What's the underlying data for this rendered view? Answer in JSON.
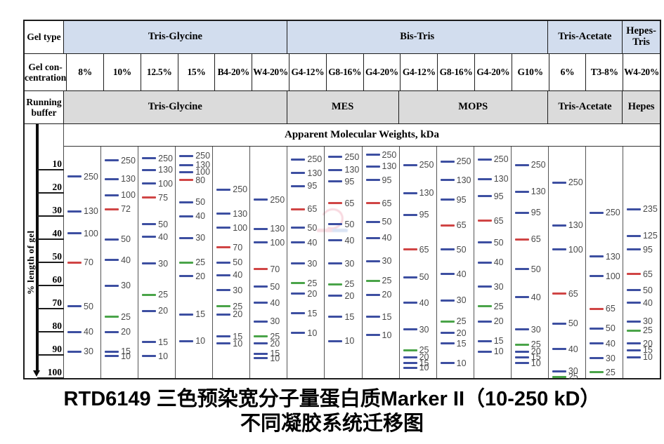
{
  "header": {
    "row1_label": "Gel type",
    "row2_label": "Gel con-\ncentration",
    "row3_label": "Running\nbuffer",
    "gel_types": [
      {
        "label": "Tris-Glycine",
        "span": 6
      },
      {
        "label": "Bis-Tris",
        "span": 7
      },
      {
        "label": "Tris-Acetate",
        "span": 2
      },
      {
        "label": "Hepes-\nTris",
        "span": 1
      }
    ],
    "concentrations": [
      "8%",
      "10%",
      "12.5%",
      "15%",
      "B4-20%",
      "W4-20%",
      "G4-12%",
      "G8-16%",
      "G4-20%",
      "G4-12%",
      "G8-16%",
      "G4-20%",
      "G10%",
      "6%",
      "T3-8%",
      "W4-20%"
    ],
    "running_buffers": [
      {
        "label": "Tris-Glycine",
        "span": 6
      },
      {
        "label": "MES",
        "span": 3
      },
      {
        "label": "MOPS",
        "span": 4
      },
      {
        "label": "Tris-Acetate",
        "span": 2
      },
      {
        "label": "Hepes",
        "span": 1
      }
    ]
  },
  "amw_title": "Apparent Molecular Weights, kDa",
  "axis": {
    "label": "% length of gel",
    "ticks": [
      "10",
      "20",
      "30",
      "40",
      "50",
      "60",
      "70",
      "80",
      "90",
      "100"
    ]
  },
  "colors": {
    "band_blue": "#3d4fa1",
    "band_red": "#d04545",
    "band_green": "#4aa449",
    "band_label": "#4a4a4a",
    "gel_type_bg": "#d2ddee",
    "buffer_bg": "#dbdbdb"
  },
  "title_line1": "RTD6149 三色预染宽分子量蛋白质Marker II（10-250 kD）",
  "title_line2": "不同凝胶系统迁移图",
  "chart_data": {
    "type": "scatter",
    "title": "RTD6149 三色预染宽分子量蛋白质Marker II（10-250 kD）不同凝胶系统迁移图",
    "ylabel": "% length of gel",
    "ylim": [
      0,
      100
    ],
    "y_direction": "downward",
    "band_format": [
      "kDa",
      "percent_length_of_gel",
      "color b=blue r=red g=green"
    ],
    "lanes": [
      {
        "gel_type": "Tris-Glycine",
        "running_buffer": "Tris-Glycine",
        "concentration": "8%",
        "bands": [
          [
            250,
            13,
            "b"
          ],
          [
            130,
            28,
            "b"
          ],
          [
            100,
            37.5,
            "b"
          ],
          [
            70,
            50,
            "r"
          ],
          [
            50,
            69,
            "b"
          ],
          [
            40,
            80,
            "b"
          ],
          [
            30,
            88.5,
            "b"
          ]
        ]
      },
      {
        "gel_type": "Tris-Glycine",
        "running_buffer": "Tris-Glycine",
        "concentration": "10%",
        "bands": [
          [
            250,
            6,
            "b"
          ],
          [
            130,
            14,
            "b"
          ],
          [
            100,
            21,
            "b"
          ],
          [
            72,
            27,
            "r"
          ],
          [
            50,
            40,
            "b"
          ],
          [
            40,
            49,
            "b"
          ],
          [
            30,
            60,
            "b"
          ],
          [
            25,
            73.5,
            "g"
          ],
          [
            20,
            80,
            "b"
          ],
          [
            15,
            88.5,
            "b"
          ],
          [
            10,
            90.5,
            "b"
          ]
        ]
      },
      {
        "gel_type": "Tris-Glycine",
        "running_buffer": "Tris-Glycine",
        "concentration": "12.5%",
        "bands": [
          [
            250,
            5,
            "b"
          ],
          [
            130,
            10,
            "b"
          ],
          [
            100,
            16,
            "b"
          ],
          [
            75,
            22,
            "r"
          ],
          [
            50,
            33.5,
            "b"
          ],
          [
            40,
            39,
            "b"
          ],
          [
            30,
            50.5,
            "b"
          ],
          [
            25,
            64,
            "g"
          ],
          [
            20,
            71,
            "b"
          ],
          [
            15,
            84.5,
            "b"
          ],
          [
            10,
            90.5,
            "b"
          ]
        ]
      },
      {
        "gel_type": "Tris-Glycine",
        "running_buffer": "Tris-Glycine",
        "concentration": "15%",
        "bands": [
          [
            250,
            4,
            "b"
          ],
          [
            130,
            8,
            "b"
          ],
          [
            100,
            11,
            "b"
          ],
          [
            80,
            14.5,
            "r"
          ],
          [
            50,
            24,
            "b"
          ],
          [
            40,
            30,
            "b"
          ],
          [
            30,
            39.5,
            "b"
          ],
          [
            25,
            50,
            "g"
          ],
          [
            20,
            56,
            "b"
          ],
          [
            15,
            72.5,
            "b"
          ],
          [
            10,
            84,
            "b"
          ]
        ]
      },
      {
        "gel_type": "Tris-Glycine",
        "running_buffer": "Tris-Glycine",
        "concentration": "B4-20%",
        "bands": [
          [
            250,
            18.5,
            "b"
          ],
          [
            130,
            29,
            "b"
          ],
          [
            100,
            35,
            "b"
          ],
          [
            70,
            43.5,
            "r"
          ],
          [
            50,
            50,
            "b"
          ],
          [
            40,
            55.5,
            "b"
          ],
          [
            30,
            62,
            "b"
          ],
          [
            25,
            69,
            "g"
          ],
          [
            20,
            72.5,
            "b"
          ],
          [
            15,
            82,
            "b"
          ],
          [
            10,
            85,
            "b"
          ]
        ]
      },
      {
        "gel_type": "Tris-Glycine",
        "running_buffer": "Tris-Glycine",
        "concentration": "W4-20%",
        "bands": [
          [
            250,
            23,
            "b"
          ],
          [
            130,
            35.5,
            "b"
          ],
          [
            100,
            41.5,
            "b"
          ],
          [
            70,
            53,
            "r"
          ],
          [
            50,
            60.5,
            "b"
          ],
          [
            40,
            67.5,
            "b"
          ],
          [
            30,
            75.5,
            "b"
          ],
          [
            25,
            82,
            "g"
          ],
          [
            20,
            85,
            "b"
          ],
          [
            15,
            89.5,
            "b"
          ],
          [
            10,
            91.5,
            "b"
          ]
        ]
      },
      {
        "gel_type": "Bis-Tris",
        "running_buffer": "MES",
        "concentration": "G4-12%",
        "bands": [
          [
            250,
            5.5,
            "b"
          ],
          [
            130,
            11.5,
            "b"
          ],
          [
            95,
            17,
            "b"
          ],
          [
            65,
            27,
            "r"
          ],
          [
            50,
            35,
            "b"
          ],
          [
            40,
            41.5,
            "b"
          ],
          [
            30,
            50.5,
            "b"
          ],
          [
            25,
            59,
            "g"
          ],
          [
            20,
            63.5,
            "b"
          ],
          [
            15,
            72,
            "b"
          ],
          [
            10,
            80.5,
            "b"
          ]
        ]
      },
      {
        "gel_type": "Bis-Tris",
        "running_buffer": "MES",
        "concentration": "G8-16%",
        "bands": [
          [
            250,
            4.5,
            "b"
          ],
          [
            130,
            10,
            "b"
          ],
          [
            95,
            15,
            "b"
          ],
          [
            65,
            24.5,
            "r"
          ],
          [
            50,
            33.5,
            "b"
          ],
          [
            40,
            40.5,
            "b"
          ],
          [
            30,
            50.5,
            "b"
          ],
          [
            25,
            59.5,
            "g"
          ],
          [
            20,
            64.5,
            "b"
          ],
          [
            15,
            73.5,
            "b"
          ],
          [
            10,
            84,
            "b"
          ]
        ]
      },
      {
        "gel_type": "Bis-Tris",
        "running_buffer": "MES",
        "concentration": "G4-20%",
        "bands": [
          [
            250,
            3.5,
            "b"
          ],
          [
            130,
            8.5,
            "b"
          ],
          [
            95,
            14.5,
            "b"
          ],
          [
            65,
            24.5,
            "r"
          ],
          [
            50,
            32.5,
            "b"
          ],
          [
            40,
            39.5,
            "b"
          ],
          [
            30,
            49.5,
            "b"
          ],
          [
            25,
            58,
            "g"
          ],
          [
            20,
            64,
            "b"
          ],
          [
            15,
            73.5,
            "b"
          ],
          [
            10,
            81.5,
            "b"
          ]
        ]
      },
      {
        "gel_type": "Bis-Tris",
        "running_buffer": "MOPS",
        "concentration": "G4-12%",
        "bands": [
          [
            250,
            8,
            "b"
          ],
          [
            130,
            20,
            "b"
          ],
          [
            95,
            29.5,
            "b"
          ],
          [
            65,
            44.5,
            "r"
          ],
          [
            50,
            56.5,
            "b"
          ],
          [
            40,
            67.5,
            "b"
          ],
          [
            30,
            79,
            "b"
          ],
          [
            25,
            88,
            "g"
          ],
          [
            20,
            91,
            "b"
          ],
          [
            15,
            93.5,
            "b"
          ],
          [
            10,
            95.5,
            "b"
          ]
        ]
      },
      {
        "gel_type": "Bis-Tris",
        "running_buffer": "MOPS",
        "concentration": "G8-16%",
        "bands": [
          [
            250,
            6.5,
            "b"
          ],
          [
            130,
            14.5,
            "b"
          ],
          [
            95,
            23,
            "b"
          ],
          [
            65,
            34,
            "r"
          ],
          [
            50,
            44.5,
            "b"
          ],
          [
            40,
            55,
            "b"
          ],
          [
            30,
            66.5,
            "b"
          ],
          [
            25,
            75.5,
            "g"
          ],
          [
            20,
            80.5,
            "b"
          ],
          [
            15,
            85,
            "b"
          ],
          [
            10,
            93.5,
            "b"
          ]
        ]
      },
      {
        "gel_type": "Bis-Tris",
        "running_buffer": "MOPS",
        "concentration": "G4-20%",
        "bands": [
          [
            250,
            5.5,
            "b"
          ],
          [
            130,
            14,
            "b"
          ],
          [
            95,
            21.5,
            "b"
          ],
          [
            65,
            32,
            "r"
          ],
          [
            50,
            41.5,
            "b"
          ],
          [
            40,
            50,
            "b"
          ],
          [
            30,
            60.5,
            "b"
          ],
          [
            25,
            69,
            "g"
          ],
          [
            20,
            75.5,
            "b"
          ],
          [
            15,
            84,
            "b"
          ],
          [
            10,
            88.5,
            "b"
          ]
        ]
      },
      {
        "gel_type": "Bis-Tris",
        "running_buffer": "MOPS",
        "concentration": "G10%",
        "bands": [
          [
            250,
            8,
            "b"
          ],
          [
            130,
            19.5,
            "b"
          ],
          [
            95,
            28.5,
            "b"
          ],
          [
            65,
            40,
            "r"
          ],
          [
            50,
            53,
            "b"
          ],
          [
            40,
            65,
            "b"
          ],
          [
            30,
            79,
            "b"
          ],
          [
            25,
            85.5,
            "g"
          ],
          [
            20,
            88.5,
            "b"
          ],
          [
            15,
            91,
            "b"
          ],
          [
            10,
            93.5,
            "b"
          ]
        ]
      },
      {
        "gel_type": "Tris-Acetate",
        "running_buffer": "Tris-Acetate",
        "concentration": "6%",
        "bands": [
          [
            250,
            15.5,
            "b"
          ],
          [
            130,
            34,
            "b"
          ],
          [
            100,
            44.5,
            "b"
          ],
          [
            65,
            63.5,
            "r"
          ],
          [
            50,
            76.5,
            "b"
          ],
          [
            40,
            87.5,
            "b"
          ],
          [
            30,
            97,
            "b"
          ],
          [
            25,
            99.5,
            "g"
          ]
        ]
      },
      {
        "gel_type": "Tris-Acetate",
        "running_buffer": "Tris-Acetate",
        "concentration": "T3-8%",
        "bands": [
          [
            250,
            28.5,
            "b"
          ],
          [
            130,
            47.5,
            "b"
          ],
          [
            100,
            56,
            "b"
          ],
          [
            65,
            70,
            "r"
          ],
          [
            50,
            78.5,
            "b"
          ],
          [
            40,
            85,
            "b"
          ],
          [
            30,
            91.5,
            "b"
          ],
          [
            25,
            97.5,
            "g"
          ]
        ]
      },
      {
        "gel_type": "Hepes-Tris",
        "running_buffer": "Hepes",
        "concentration": "W4-20%",
        "bands": [
          [
            235,
            27,
            "b"
          ],
          [
            125,
            38.5,
            "b"
          ],
          [
            95,
            44.5,
            "b"
          ],
          [
            65,
            55,
            "r"
          ],
          [
            50,
            62,
            "b"
          ],
          [
            40,
            67.5,
            "b"
          ],
          [
            30,
            75.5,
            "b"
          ],
          [
            25,
            79.5,
            "g"
          ],
          [
            20,
            85,
            "b"
          ],
          [
            15,
            88,
            "b"
          ],
          [
            10,
            91,
            "b"
          ]
        ]
      }
    ]
  }
}
